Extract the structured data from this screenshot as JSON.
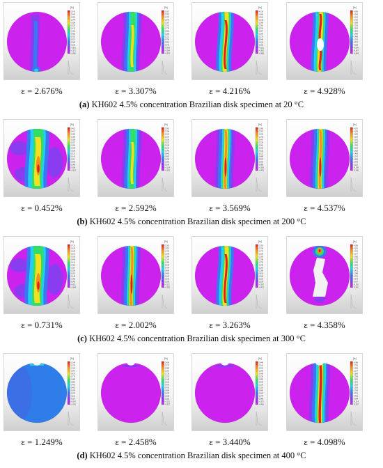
{
  "rows": [
    {
      "letter": "(a)",
      "title": "KH602 4.5% concentration Brazilian disk specimen at 20 °C",
      "panels": [
        {
          "strain": "ε = 2.676%",
          "pattern": "thin-edge",
          "unit": "[%]",
          "ticks": [
            "2.676",
            "2.465",
            "2.255",
            "2.044",
            "1.834",
            "1.623",
            "1.413",
            "1.202",
            "0.992",
            "0.781",
            "0.571",
            "0.360",
            "0.150",
            "-0.061",
            "-0.271",
            "-0.482"
          ]
        },
        {
          "strain": "ε = 3.307%",
          "pattern": "wide-band",
          "unit": "[%]",
          "ticks": [
            "3.307",
            "3.052",
            "2.797",
            "2.542",
            "2.287",
            "2.031",
            "1.776",
            "1.521",
            "1.266",
            "1.011",
            "0.756",
            "0.501",
            "0.246",
            "-0.009",
            "-0.264",
            "-0.519"
          ]
        },
        {
          "strain": "ε = 4.216%",
          "pattern": "crack",
          "unit": "[%]",
          "ticks": [
            "4.216",
            "3.889",
            "3.562",
            "3.235",
            "2.908",
            "2.581",
            "2.254",
            "1.927",
            "1.600",
            "1.273",
            "0.946",
            "0.619",
            "0.292",
            "-0.035",
            "-0.362",
            "-0.689"
          ]
        },
        {
          "strain": "ε = 4.928%",
          "pattern": "crack-gap",
          "unit": "[%]",
          "ticks": [
            "4.928",
            "4.546",
            "4.163",
            "3.781",
            "3.398",
            "3.016",
            "2.633",
            "2.251",
            "1.868",
            "1.486",
            "1.103",
            "0.721",
            "0.338",
            "-0.044",
            "-0.427",
            "-0.809"
          ]
        }
      ]
    },
    {
      "letter": "(b)",
      "title": "KH602 4.5% concentration Brazilian disk specimen at 200 °C",
      "panels": [
        {
          "strain": "ε = 0.452%",
          "pattern": "diffuse",
          "unit": "[%]",
          "ticks": [
            "0.452",
            "0.421",
            "0.390",
            "0.359",
            "0.328",
            "0.297",
            "0.266",
            "0.235",
            "0.204",
            "0.173",
            "0.142",
            "0.111",
            "0.080",
            "0.049",
            "0.018",
            "-0.013"
          ]
        },
        {
          "strain": "ε = 2.592%",
          "pattern": "wide-band",
          "unit": "[%]",
          "ticks": [
            "2.592",
            "2.398",
            "2.204",
            "2.010",
            "1.816",
            "1.622",
            "1.428",
            "1.234",
            "1.040",
            "0.846",
            "0.652",
            "0.458",
            "0.264",
            "0.070",
            "-0.124",
            "-0.318"
          ]
        },
        {
          "strain": "ε = 3.569%",
          "pattern": "band",
          "unit": "[%]",
          "ticks": [
            "3.569",
            "3.301",
            "3.033",
            "2.765",
            "2.497",
            "2.229",
            "1.961",
            "1.693",
            "1.425",
            "1.157",
            "0.889",
            "0.621",
            "0.353",
            "0.085",
            "-0.183",
            "-0.451"
          ]
        },
        {
          "strain": "ε = 4.537%",
          "pattern": "band",
          "unit": "[%]",
          "ticks": [
            "4.537",
            "4.198",
            "3.859",
            "3.520",
            "3.181",
            "2.842",
            "2.503",
            "2.164",
            "1.825",
            "1.486",
            "1.147",
            "0.808",
            "0.469",
            "0.130",
            "-0.209",
            "-0.548"
          ]
        }
      ]
    },
    {
      "letter": "(c)",
      "title": "KH602 4.5% concentration Brazilian disk specimen at 300 °C",
      "panels": [
        {
          "strain": "ε = 0.731%",
          "pattern": "diffuse",
          "unit": "[%]",
          "ticks": [
            "0.731",
            "0.678",
            "0.625",
            "0.572",
            "0.519",
            "0.466",
            "0.413",
            "0.360",
            "0.307",
            "0.254",
            "0.201",
            "0.148",
            "0.095",
            "0.042",
            "-0.011",
            "-0.064"
          ]
        },
        {
          "strain": "ε = 2.002%",
          "pattern": "band",
          "unit": "[%]",
          "ticks": [
            "2.002",
            "1.851",
            "1.700",
            "1.549",
            "1.398",
            "1.247",
            "1.096",
            "0.945",
            "0.794",
            "0.643",
            "0.492",
            "0.341",
            "0.190",
            "0.039",
            "-0.112",
            "-0.263"
          ]
        },
        {
          "strain": "ε = 3.263%",
          "pattern": "crack",
          "unit": "[%]",
          "ticks": [
            "3.263",
            "3.018",
            "2.773",
            "2.528",
            "2.283",
            "2.038",
            "1.793",
            "1.548",
            "1.303",
            "1.058",
            "0.813",
            "0.568",
            "0.323",
            "0.078",
            "-0.167",
            "-0.412"
          ]
        },
        {
          "strain": "ε = 4.358%",
          "pattern": "broken",
          "unit": "[%]",
          "ticks": [
            "4.358",
            "4.031",
            "3.704",
            "3.377",
            "3.050",
            "2.723",
            "2.396",
            "2.069",
            "1.742",
            "1.415",
            "1.088",
            "0.761",
            "0.434",
            "0.107",
            "-0.220",
            "-0.547"
          ]
        }
      ]
    },
    {
      "letter": "(d)",
      "title": "KH602 4.5% concentration Brazilian disk specimen at 400 °C",
      "panels": [
        {
          "strain": "ε = 1.249%",
          "pattern": "blue",
          "unit": "[%]",
          "ticks": [
            "1.249",
            "1.155",
            "1.061",
            "0.967",
            "0.873",
            "0.779",
            "0.685",
            "0.591",
            "0.497",
            "0.403",
            "0.309",
            "0.215",
            "0.121",
            "0.027",
            "-0.067",
            "-0.161"
          ]
        },
        {
          "strain": "ε = 2.458%",
          "pattern": "notch",
          "unit": "[%]",
          "ticks": [
            "2.458",
            "2.273",
            "2.088",
            "1.903",
            "1.718",
            "1.533",
            "1.348",
            "1.163",
            "0.978",
            "0.793",
            "0.608",
            "0.423",
            "0.238",
            "0.053",
            "-0.132",
            "-0.317"
          ]
        },
        {
          "strain": "ε = 3.440%",
          "pattern": "notch",
          "unit": "[%]",
          "ticks": [
            "3.440",
            "3.182",
            "2.924",
            "2.666",
            "2.408",
            "2.150",
            "1.892",
            "1.634",
            "1.376",
            "1.118",
            "0.860",
            "0.602",
            "0.344",
            "0.086",
            "-0.172",
            "-0.430"
          ]
        },
        {
          "strain": "ε = 4.098%",
          "pattern": "band-notch",
          "unit": "[%]",
          "ticks": [
            "4.098",
            "3.790",
            "3.482",
            "3.174",
            "2.866",
            "2.558",
            "2.250",
            "1.942",
            "1.634",
            "1.326",
            "1.018",
            "0.710",
            "0.402",
            "0.094",
            "-0.214",
            "-0.522"
          ]
        }
      ]
    }
  ],
  "colors": {
    "magenta": "#cc22ee",
    "violet": "#8a3cf0",
    "blue": "#3a78f2",
    "cyan": "#22d0ee",
    "green": "#33dd66",
    "yellow": "#f0e020",
    "orange": "#f59020",
    "red": "#e02020",
    "background_blue": "#2f7de8"
  }
}
